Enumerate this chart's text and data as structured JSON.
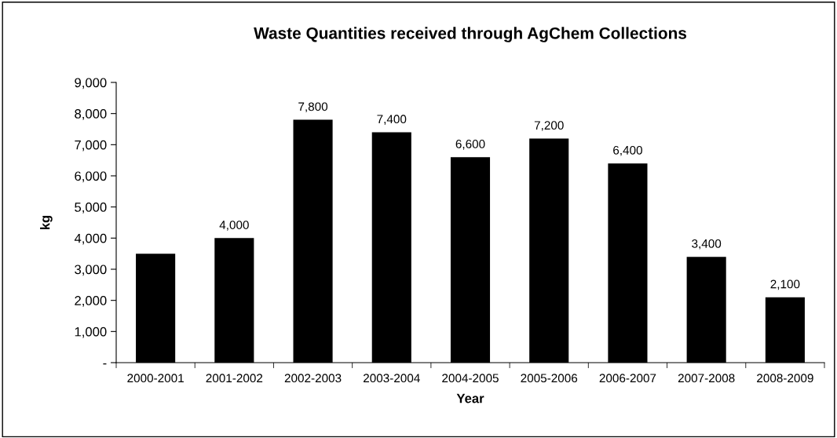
{
  "chart_data": {
    "type": "bar",
    "title": "Waste Quantities received through AgChem Collections",
    "xlabel": "Year",
    "ylabel": "kg",
    "categories": [
      "2000-2001",
      "2001-2002",
      "2002-2003",
      "2003-2004",
      "2004-2005",
      "2005-2006",
      "2006-2007",
      "2007-2008",
      "2008-2009"
    ],
    "values": [
      3500,
      4000,
      7800,
      7400,
      6600,
      7200,
      6400,
      3400,
      2100
    ],
    "value_labels": [
      null,
      "4,000",
      "7,800",
      "7,400",
      "6,600",
      "7,200",
      "6,400",
      "3,400",
      "2,100"
    ],
    "color": "#000000",
    "ylim": [
      0,
      9000
    ],
    "yticks": [
      {
        "value": 0,
        "label": "-"
      },
      {
        "value": 1000,
        "label": "1,000"
      },
      {
        "value": 2000,
        "label": "2,000"
      },
      {
        "value": 3000,
        "label": "3,000"
      },
      {
        "value": 4000,
        "label": "4,000"
      },
      {
        "value": 5000,
        "label": "5,000"
      },
      {
        "value": 6000,
        "label": "6,000"
      },
      {
        "value": 7000,
        "label": "7,000"
      },
      {
        "value": 8000,
        "label": "8,000"
      },
      {
        "value": 9000,
        "label": "9,000"
      }
    ],
    "grid": false,
    "legend": false
  }
}
